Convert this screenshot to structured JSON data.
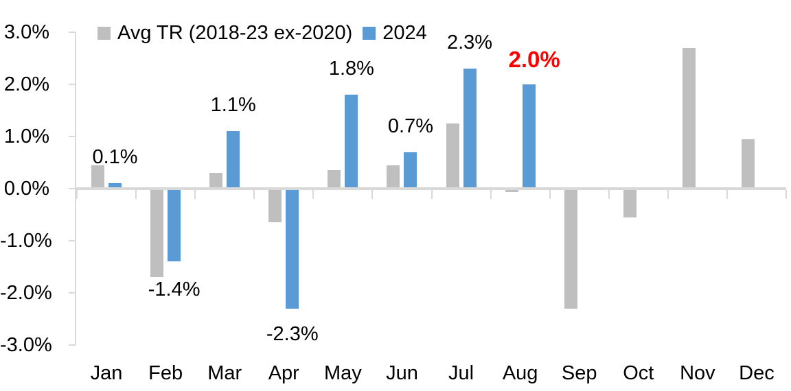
{
  "chart_data": {
    "type": "bar",
    "title": "",
    "categories": [
      "Jan",
      "Feb",
      "Mar",
      "Apr",
      "May",
      "Jun",
      "Jul",
      "Aug",
      "Sep",
      "Oct",
      "Nov",
      "Dec"
    ],
    "series": [
      {
        "name": "Avg TR (2018-23 ex-2020)",
        "color": "#BFBFBF",
        "values": [
          0.45,
          -1.7,
          0.3,
          -0.65,
          0.35,
          0.45,
          1.25,
          -0.07,
          -2.3,
          -0.55,
          2.7,
          0.95
        ]
      },
      {
        "name": "2024",
        "color": "#5B9BD5",
        "values": [
          0.1,
          -1.4,
          1.1,
          -2.3,
          1.8,
          0.7,
          2.3,
          2.0,
          null,
          null,
          null,
          null
        ]
      }
    ],
    "data_labels": [
      {
        "month_index": 0,
        "text": "0.1%",
        "color": "#000000",
        "bold": false
      },
      {
        "month_index": 1,
        "text": "-1.4%",
        "color": "#000000",
        "bold": false
      },
      {
        "month_index": 2,
        "text": "1.1%",
        "color": "#000000",
        "bold": false
      },
      {
        "month_index": 3,
        "text": "-2.3%",
        "color": "#000000",
        "bold": false,
        "dy": 19
      },
      {
        "month_index": 4,
        "text": "1.8%",
        "color": "#000000",
        "bold": false
      },
      {
        "month_index": 5,
        "text": "0.7%",
        "color": "#000000",
        "bold": false
      },
      {
        "month_index": 6,
        "text": "2.3%",
        "color": "#000000",
        "bold": false
      },
      {
        "month_index": 7,
        "text": "2.0%",
        "color": "#FF0000",
        "bold": true,
        "dx": 8
      }
    ],
    "y_axis": {
      "ticks": [
        {
          "label": "3.0%",
          "value": 3
        },
        {
          "label": "2.0%",
          "value": 2
        },
        {
          "label": "1.0%",
          "value": 1
        },
        {
          "label": "0.0%",
          "value": 0
        },
        {
          "label": "-1.0%",
          "value": -1
        },
        {
          "label": "-2.0%",
          "value": -2
        },
        {
          "label": "-3.0%",
          "value": -3
        }
      ]
    },
    "ylim": [
      -3,
      3
    ],
    "unit": "%",
    "grid": false,
    "legend_position": "top-left",
    "colors": {
      "axis": "#D9D9D9",
      "label": "#000000",
      "highlight": "#FF0000",
      "background": "#FFFFFF"
    }
  }
}
